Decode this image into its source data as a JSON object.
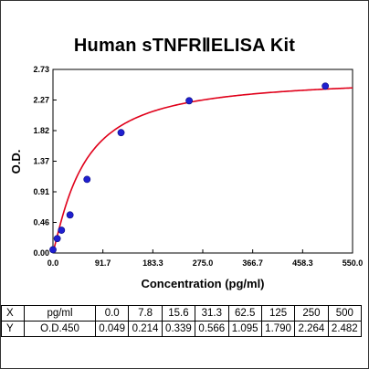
{
  "chart_data": {
    "type": "scatter",
    "title": "Human sTNFRⅡELISA Kit",
    "xlabel": "Concentration (pg/ml)",
    "ylabel": "O.D.",
    "xlim": [
      0.0,
      550.0
    ],
    "ylim": [
      0.0,
      2.73
    ],
    "xticks": [
      "0.0",
      "91.7",
      "183.3",
      "275.0",
      "366.7",
      "458.3",
      "550.0"
    ],
    "yticks": [
      "0.00",
      "0.46",
      "0.91",
      "1.37",
      "1.82",
      "2.27",
      "2.73"
    ],
    "series": [
      {
        "x": [
          0.0,
          7.8,
          15.6,
          31.3,
          62.5,
          125,
          250,
          500
        ],
        "y": [
          0.049,
          0.214,
          0.339,
          0.566,
          1.095,
          1.79,
          2.264,
          2.482
        ],
        "color": "#1f1fd0",
        "fit_color": "#e0001a",
        "marker": "circle"
      }
    ],
    "grid": false,
    "legend": "none"
  },
  "table": {
    "rows": [
      [
        "X",
        "pg/ml",
        "0.0",
        "7.8",
        "15.6",
        "31.3",
        "62.5",
        "125",
        "250",
        "500"
      ],
      [
        "Y",
        "O.D.450",
        "0.049",
        "0.214",
        "0.339",
        "0.566",
        "1.095",
        "1.790",
        "2.264",
        "2.482"
      ]
    ]
  }
}
